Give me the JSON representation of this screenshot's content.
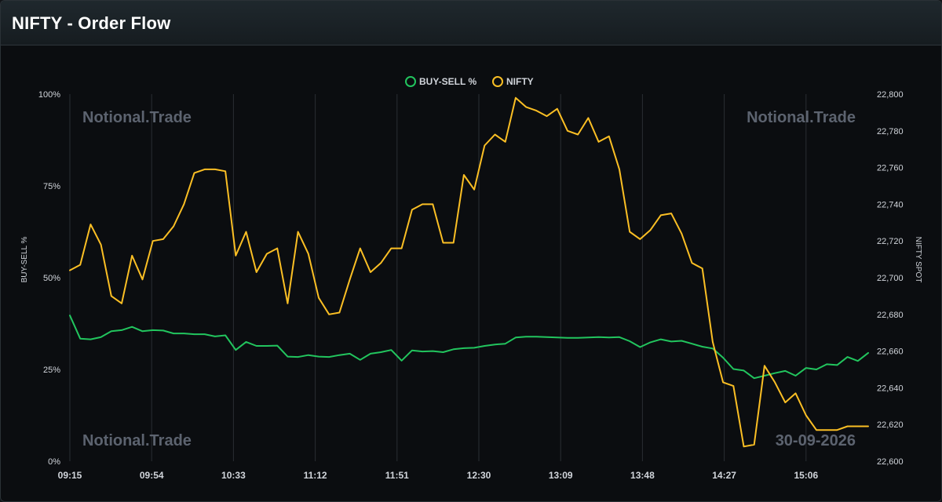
{
  "header": {
    "title": "NIFTY - Order Flow"
  },
  "watermarks": {
    "top_left": "Notional.Trade",
    "top_right": "Notional.Trade",
    "bottom_left": "Notional.Trade",
    "bottom_right": "30-09-2026"
  },
  "colors": {
    "buy_sell": "#22c55e",
    "nifty": "#fbbf24",
    "grid": "#2a2e33",
    "tick_text": "#d1d5db",
    "watermark": "#6b7280"
  },
  "chart_data": {
    "type": "line",
    "legend_position": "top-center",
    "grid": true,
    "x_ticks": [
      "09:15",
      "09:54",
      "10:33",
      "11:12",
      "11:51",
      "12:30",
      "13:09",
      "13:48",
      "14:27",
      "15:06"
    ],
    "y_left": {
      "label": "BUY-SELL %",
      "range": [
        0,
        100
      ],
      "ticks": [
        "0%",
        "25%",
        "50%",
        "75%",
        "100%"
      ]
    },
    "y_right": {
      "label": "NIFTY SPOT",
      "range": [
        22600,
        22800
      ],
      "ticks": [
        "22,600",
        "22,620",
        "22,640",
        "22,660",
        "22,680",
        "22,700",
        "22,720",
        "22,740",
        "22,760",
        "22,780",
        "22,800"
      ]
    },
    "series": [
      {
        "name": "BUY-SELL %",
        "axis": "left",
        "color": "#22c55e",
        "values": [
          39.7,
          33.4,
          33.2,
          33.8,
          35.4,
          35.7,
          36.6,
          35.4,
          35.7,
          35.6,
          34.8,
          34.8,
          34.6,
          34.6,
          34.0,
          34.3,
          30.3,
          32.5,
          31.4,
          31.4,
          31.5,
          28.5,
          28.4,
          28.9,
          28.5,
          28.4,
          28.9,
          29.3,
          27.6,
          29.3,
          29.7,
          30.3,
          27.4,
          30.2,
          29.9,
          30.0,
          29.7,
          30.5,
          30.8,
          30.9,
          31.4,
          31.8,
          32.0,
          33.7,
          33.9,
          33.9,
          33.8,
          33.7,
          33.6,
          33.6,
          33.7,
          33.8,
          33.7,
          33.8,
          32.7,
          31.1,
          32.4,
          33.2,
          32.6,
          32.8,
          32.0,
          31.2,
          30.7,
          28.2,
          25.1,
          24.7,
          22.6,
          23.3,
          24.0,
          24.6,
          23.3,
          25.4,
          25.0,
          26.4,
          26.2,
          28.4,
          27.3,
          29.5
        ]
      },
      {
        "name": "NIFTY",
        "axis": "right",
        "color": "#fbbf24",
        "values": [
          22704,
          22707,
          22729,
          22718,
          22690,
          22686,
          22712,
          22699,
          22720,
          22721,
          22728,
          22740,
          22757,
          22759,
          22759,
          22758,
          22712,
          22725,
          22703,
          22713,
          22716,
          22686,
          22725,
          22713,
          22689,
          22680,
          22681,
          22699,
          22716,
          22703,
          22708,
          22716,
          22716,
          22737,
          22740,
          22740,
          22719,
          22719,
          22756,
          22748,
          22772,
          22778,
          22774,
          22798,
          22793,
          22791,
          22788,
          22792,
          22780,
          22778,
          22787,
          22774,
          22777,
          22759,
          22725,
          22721,
          22726,
          22734,
          22735,
          22724,
          22708,
          22705,
          22665,
          22643,
          22641,
          22608,
          22609,
          22652,
          22643,
          22632,
          22637,
          22625,
          22617,
          22617,
          22617,
          22619,
          22619,
          22619
        ]
      }
    ]
  }
}
